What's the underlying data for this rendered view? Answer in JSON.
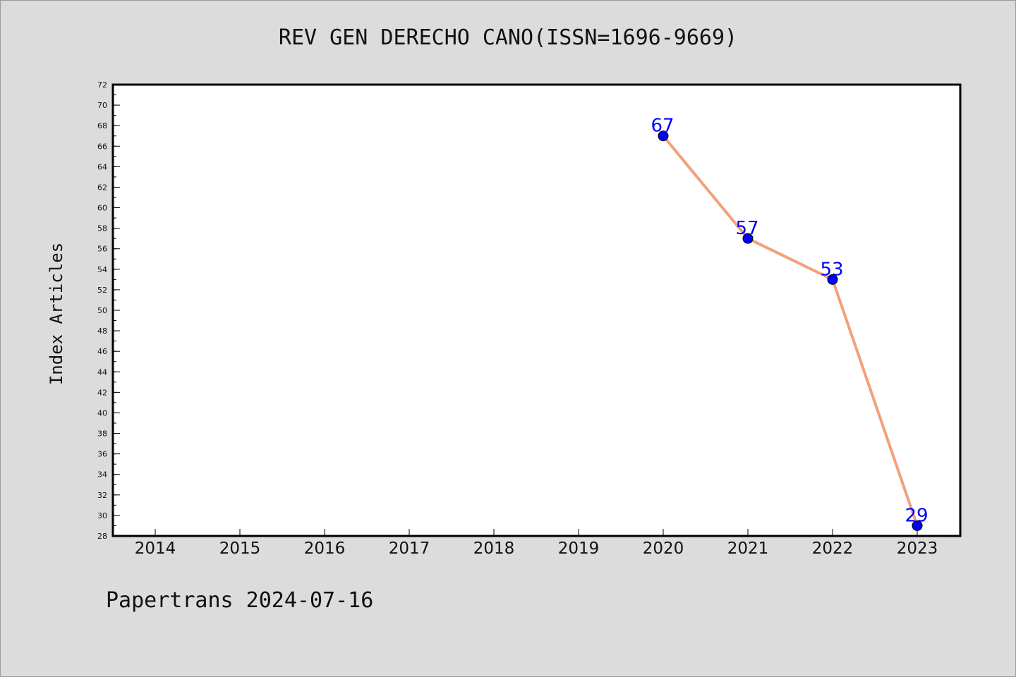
{
  "colors": {
    "background": "#dcdcdc",
    "plot_background": "#ffffff",
    "line": "#f4a07a",
    "marker": "#0000ff",
    "data_label": "#0000ff"
  },
  "footer": {
    "text": "Papertrans 2024-07-16"
  },
  "chart_data": {
    "type": "line",
    "title": "REV GEN DERECHO CANO(ISSN=1696-9669)",
    "xlabel": "",
    "ylabel": "Index Articles",
    "x_categories": [
      "2014",
      "2015",
      "2016",
      "2017",
      "2018",
      "2019",
      "2020",
      "2021",
      "2022",
      "2023"
    ],
    "ylim": [
      28,
      72
    ],
    "y_ticks": [
      28,
      30,
      32,
      34,
      36,
      38,
      40,
      42,
      44,
      46,
      48,
      50,
      52,
      54,
      56,
      58,
      60,
      62,
      64,
      66,
      68,
      70,
      72
    ],
    "y_minor_step": 1,
    "grid": false,
    "series": [
      {
        "points": [
          {
            "x": "2020",
            "y": 67
          },
          {
            "x": "2021",
            "y": 57
          },
          {
            "x": "2022",
            "y": 53
          },
          {
            "x": "2023",
            "y": 29
          }
        ]
      }
    ]
  }
}
